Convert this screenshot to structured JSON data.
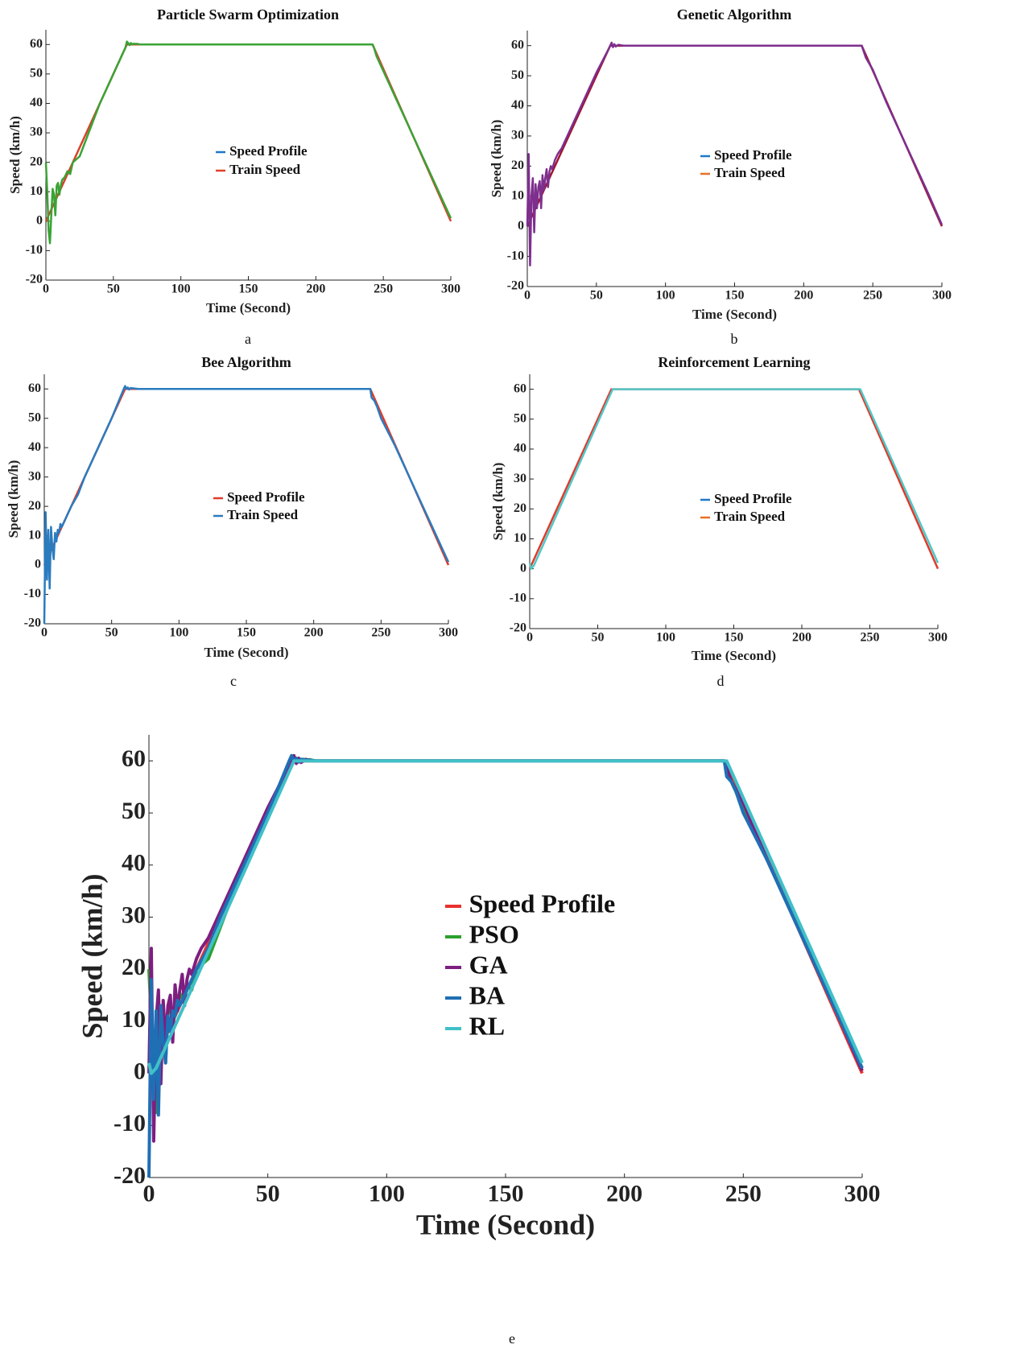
{
  "chart_data": [
    {
      "type": "line",
      "title": "Particle Swarm Optimization",
      "caption": "a",
      "xlabel": "Time (Second)",
      "ylabel": "Speed (km/h)",
      "xlim": [
        0,
        300
      ],
      "ylim": [
        -20,
        65
      ],
      "xticks": [
        0,
        50,
        100,
        150,
        200,
        250,
        300
      ],
      "yticks": [
        -20,
        -10,
        0,
        10,
        20,
        30,
        40,
        50,
        60
      ],
      "series": [
        {
          "name": "Speed Profile",
          "color": "#d9412b",
          "legend_color": "#1f77c8",
          "x": [
            0,
            60,
            242,
            300
          ],
          "values": [
            0,
            60,
            60,
            0
          ]
        },
        {
          "name": "Train Speed",
          "color": "#3aa335",
          "legend_color": "#e0402a",
          "x": [
            0,
            1,
            2,
            3,
            4,
            5,
            6,
            7,
            8,
            9,
            10,
            11,
            12,
            14,
            16,
            18,
            20,
            25,
            30,
            40,
            50,
            59,
            60,
            61,
            62,
            63,
            64,
            65,
            66,
            68,
            70,
            75,
            242,
            243,
            245,
            247,
            250,
            255,
            260,
            270,
            280,
            290,
            300
          ],
          "values": [
            20,
            10,
            -3,
            -7.5,
            2,
            11,
            9,
            2,
            12,
            13,
            9,
            12,
            14,
            15,
            17,
            16,
            20,
            22,
            28,
            40,
            50,
            59,
            61,
            60.5,
            59.8,
            60.5,
            60,
            60.3,
            60.2,
            60.2,
            60,
            60,
            60,
            59,
            56,
            54,
            51,
            46,
            41,
            31,
            21,
            11,
            1
          ]
        }
      ]
    },
    {
      "type": "line",
      "title": "Genetic Algorithm",
      "caption": "b",
      "xlabel": "Time (Second)",
      "ylabel": "Speed (km/h)",
      "xlim": [
        0,
        300
      ],
      "ylim": [
        -20,
        65
      ],
      "xticks": [
        0,
        50,
        100,
        150,
        200,
        250,
        300
      ],
      "yticks": [
        -20,
        -10,
        0,
        10,
        20,
        30,
        40,
        50,
        60
      ],
      "series": [
        {
          "name": "Speed Profile",
          "color": "#a2142f",
          "legend_color": "#1f77c8",
          "x": [
            0,
            60,
            242,
            300
          ],
          "values": [
            0,
            60,
            60,
            0
          ]
        },
        {
          "name": "Train Speed",
          "color": "#7e2f8e",
          "legend_color": "#e8702a",
          "x": [
            0,
            1,
            2,
            3,
            4,
            5,
            6,
            7,
            8,
            9,
            10,
            11,
            12,
            13,
            14,
            15,
            16,
            17,
            18,
            20,
            22,
            25,
            30,
            40,
            50,
            59,
            60,
            61,
            62,
            63,
            64,
            66,
            68,
            70,
            242,
            245,
            250,
            260,
            270,
            280,
            290,
            300
          ],
          "values": [
            0,
            24,
            -13,
            10,
            16,
            -2,
            14,
            6,
            13,
            15,
            6,
            17,
            12,
            16,
            19,
            13,
            18,
            20,
            19,
            22,
            24,
            26,
            31,
            41,
            51,
            59,
            60,
            61,
            59.5,
            60.5,
            59.7,
            60.3,
            60.1,
            60,
            60,
            56,
            52,
            41,
            31,
            21,
            11,
            0.5
          ]
        }
      ]
    },
    {
      "type": "line",
      "title": "Bee Algorithm",
      "caption": "c",
      "xlabel": "Time (Second)",
      "ylabel": "Speed (km/h)",
      "xlim": [
        0,
        300
      ],
      "ylim": [
        -20,
        65
      ],
      "xticks": [
        0,
        50,
        100,
        150,
        200,
        250,
        300
      ],
      "yticks": [
        -20,
        -10,
        0,
        10,
        20,
        30,
        40,
        50,
        60
      ],
      "series": [
        {
          "name": "Speed Profile",
          "color": "#e03a2a",
          "legend_color": "#e03a2a",
          "x": [
            0,
            60,
            242,
            300
          ],
          "values": [
            0,
            60,
            60,
            0
          ]
        },
        {
          "name": "Train Speed",
          "color": "#2b7bbf",
          "legend_color": "#2b7bbf",
          "x": [
            0,
            1,
            2,
            3,
            4,
            5,
            6,
            7,
            8,
            9,
            10,
            11,
            12,
            13,
            14,
            15,
            16,
            20,
            25,
            30,
            40,
            50,
            59,
            60,
            61,
            62,
            63,
            64,
            66,
            70,
            242,
            243,
            245,
            247,
            250,
            260,
            270,
            280,
            290,
            300
          ],
          "values": [
            -20,
            18,
            -5,
            12,
            -8,
            13,
            6,
            2,
            11,
            8,
            12,
            11,
            14,
            13,
            14,
            15,
            16,
            20,
            24,
            30,
            40,
            50,
            60,
            61,
            60,
            60.5,
            59.8,
            60.3,
            60.2,
            60,
            60,
            57,
            56,
            54,
            50,
            41,
            31,
            21,
            11,
            1
          ]
        }
      ]
    },
    {
      "type": "line",
      "title": "Reinforcement Learning",
      "caption": "d",
      "xlabel": "Time (Second)",
      "ylabel": "Speed (km/h)",
      "xlim": [
        0,
        300
      ],
      "ylim": [
        -20,
        65
      ],
      "xticks": [
        0,
        50,
        100,
        150,
        200,
        250,
        300
      ],
      "yticks": [
        -20,
        -10,
        0,
        10,
        20,
        30,
        40,
        50,
        60
      ],
      "series": [
        {
          "name": "Speed Profile",
          "color": "#e03a2a",
          "legend_color": "#1f77c8",
          "x": [
            0,
            60,
            242,
            300
          ],
          "values": [
            0,
            60,
            60,
            0
          ]
        },
        {
          "name": "Train Speed",
          "color": "#4fc8c8",
          "legend_color": "#e8702a",
          "x": [
            0,
            1,
            2,
            3,
            61,
            243,
            300
          ],
          "values": [
            2,
            0,
            0.5,
            1,
            60,
            60,
            2
          ]
        }
      ]
    },
    {
      "type": "line",
      "caption": "e",
      "xlabel": "Time (Second)",
      "ylabel": "Speed (km/h)",
      "xlim": [
        0,
        300
      ],
      "ylim": [
        -20,
        65
      ],
      "xticks": [
        0,
        50,
        100,
        150,
        200,
        250,
        300
      ],
      "yticks": [
        -20,
        -10,
        0,
        10,
        20,
        30,
        40,
        50,
        60
      ],
      "series": [
        {
          "name": "Speed Profile",
          "color": "#e8312f",
          "x": [
            0,
            60,
            242,
            300
          ],
          "values": [
            0,
            60,
            60,
            0
          ]
        },
        {
          "name": "PSO",
          "color": "#2ca02c",
          "x": [
            0,
            1,
            2,
            3,
            4,
            5,
            6,
            7,
            8,
            9,
            10,
            11,
            12,
            14,
            16,
            18,
            20,
            25,
            30,
            40,
            50,
            59,
            60,
            61,
            62,
            63,
            64,
            65,
            66,
            68,
            70,
            75,
            242,
            243,
            245,
            247,
            250,
            255,
            260,
            270,
            280,
            290,
            300
          ],
          "values": [
            20,
            10,
            -3,
            -7.5,
            2,
            11,
            9,
            2,
            12,
            13,
            9,
            12,
            14,
            15,
            17,
            16,
            20,
            22,
            28,
            40,
            50,
            59,
            61,
            60.5,
            59.8,
            60.5,
            60,
            60.3,
            60.2,
            60.2,
            60,
            60,
            60,
            59,
            56,
            54,
            51,
            46,
            41,
            31,
            21,
            11,
            1
          ]
        },
        {
          "name": "GA",
          "color": "#7e1e80",
          "x": [
            0,
            1,
            2,
            3,
            4,
            5,
            6,
            7,
            8,
            9,
            10,
            11,
            12,
            13,
            14,
            15,
            16,
            17,
            18,
            20,
            22,
            25,
            30,
            40,
            50,
            59,
            60,
            61,
            62,
            63,
            64,
            66,
            68,
            70,
            242,
            245,
            250,
            260,
            270,
            280,
            290,
            300
          ],
          "values": [
            0,
            24,
            -13,
            10,
            16,
            -2,
            14,
            6,
            13,
            15,
            6,
            17,
            12,
            16,
            19,
            13,
            18,
            20,
            19,
            22,
            24,
            26,
            31,
            41,
            51,
            59,
            60,
            61,
            59.5,
            60.5,
            59.7,
            60.3,
            60.1,
            60,
            60,
            56,
            52,
            41,
            31,
            21,
            11,
            0.5
          ]
        },
        {
          "name": "BA",
          "color": "#1f6fb5",
          "x": [
            0,
            1,
            2,
            3,
            4,
            5,
            6,
            7,
            8,
            9,
            10,
            11,
            12,
            13,
            14,
            15,
            16,
            20,
            25,
            30,
            40,
            50,
            59,
            60,
            61,
            62,
            63,
            64,
            66,
            70,
            242,
            243,
            245,
            247,
            250,
            260,
            270,
            280,
            290,
            300
          ],
          "values": [
            -20,
            18,
            -5,
            12,
            -8,
            13,
            6,
            2,
            11,
            8,
            12,
            11,
            14,
            13,
            14,
            15,
            16,
            20,
            24,
            30,
            40,
            50,
            60,
            61,
            60,
            60.5,
            59.8,
            60.3,
            60.2,
            60,
            60,
            57,
            56,
            54,
            50,
            41,
            31,
            21,
            11,
            1
          ]
        },
        {
          "name": "RL",
          "color": "#40c0c8",
          "x": [
            0,
            1,
            2,
            3,
            61,
            243,
            300
          ],
          "values": [
            2,
            0,
            0.5,
            1,
            60,
            60,
            2
          ]
        }
      ]
    }
  ]
}
